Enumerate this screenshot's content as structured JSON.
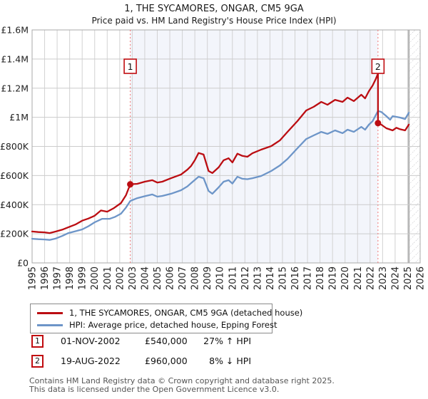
{
  "title": "1, THE SYCAMORES, ONGAR, CM5 9GA",
  "subtitle": "Price paid vs. HM Land Registry's House Price Index (HPI)",
  "colors": {
    "property_line": "#bb0d12",
    "hpi_line": "#6d95c8",
    "shade_between_sales": "#f3f5fb",
    "sale_dashed_line": "#fketch07878",
    "grid": "#cccccc",
    "plot_border": "#aaaaaa",
    "hatch": "#c2c2c6",
    "marker_box_border": "#c00c10",
    "footer_text": "#555555"
  },
  "chart_data": {
    "type": "line",
    "title": "1, THE SYCAMORES, ONGAR, CM5 9GA",
    "subtitle": "Price paid vs. HM Land Registry's House Price Index (HPI)",
    "units": "GBP thousands",
    "x_range": [
      1995,
      2026
    ],
    "ylim_k": [
      0,
      1600
    ],
    "grid": true,
    "legend_position": "bottom",
    "y_ticks": [
      {
        "label": "£0",
        "value": 0
      },
      {
        "label": "£200K",
        "value": 200
      },
      {
        "label": "£400K",
        "value": 400
      },
      {
        "label": "£600K",
        "value": 600
      },
      {
        "label": "£800K",
        "value": 800
      },
      {
        "label": "£1M",
        "value": 1000
      },
      {
        "label": "£1.2M",
        "value": 1200
      },
      {
        "label": "£1.4M",
        "value": 1400
      },
      {
        "label": "£1.6M",
        "value": 1600
      }
    ],
    "x_tick_labels": [
      "1995",
      "1996",
      "1997",
      "1998",
      "1999",
      "2000",
      "2001",
      "2002",
      "2003",
      "2004",
      "2005",
      "2006",
      "2007",
      "2008",
      "2009",
      "2010",
      "2011",
      "2012",
      "2013",
      "2014",
      "2015",
      "2016",
      "2017",
      "2018",
      "2019",
      "2020",
      "2021",
      "2022",
      "2023",
      "2024",
      "2025",
      "2026"
    ],
    "shaded_region_years": [
      2002.84,
      2022.63
    ],
    "hatch_region_years": [
      2025.1,
      2026
    ],
    "sales": [
      {
        "num": "1",
        "year": 2002.84,
        "price_k": 540
      },
      {
        "num": "2",
        "year": 2022.63,
        "price_k": 960
      }
    ],
    "series": [
      {
        "name": "1, THE SYCAMORES, ONGAR, CM5 9GA (detached house)",
        "color": "#bb0d12",
        "points": [
          [
            1995.0,
            216
          ],
          [
            1995.5,
            212
          ],
          [
            1996.0,
            210
          ],
          [
            1996.4,
            205
          ],
          [
            1996.9,
            216
          ],
          [
            1997.4,
            228
          ],
          [
            1997.9,
            245
          ],
          [
            1998.5,
            265
          ],
          [
            1999.0,
            290
          ],
          [
            1999.5,
            305
          ],
          [
            2000.0,
            324
          ],
          [
            2000.5,
            360
          ],
          [
            2001.0,
            352
          ],
          [
            2001.5,
            375
          ],
          [
            2002.1,
            411
          ],
          [
            2002.5,
            465
          ],
          [
            2002.84,
            540
          ],
          [
            2003.4,
            543
          ],
          [
            2004.0,
            558
          ],
          [
            2004.6,
            568
          ],
          [
            2005.0,
            552
          ],
          [
            2005.4,
            558
          ],
          [
            2006.1,
            582
          ],
          [
            2006.9,
            607
          ],
          [
            2007.4,
            640
          ],
          [
            2007.7,
            666
          ],
          [
            2008.0,
            705
          ],
          [
            2008.3,
            755
          ],
          [
            2008.7,
            744
          ],
          [
            2009.1,
            631
          ],
          [
            2009.4,
            617
          ],
          [
            2009.9,
            656
          ],
          [
            2010.3,
            705
          ],
          [
            2010.7,
            719
          ],
          [
            2011.0,
            690
          ],
          [
            2011.4,
            750
          ],
          [
            2011.8,
            735
          ],
          [
            2012.2,
            729
          ],
          [
            2012.6,
            753
          ],
          [
            2013.3,
            778
          ],
          [
            2014.1,
            802
          ],
          [
            2014.8,
            842
          ],
          [
            2015.4,
            900
          ],
          [
            2016.2,
            974
          ],
          [
            2016.9,
            1047
          ],
          [
            2017.5,
            1072
          ],
          [
            2018.1,
            1106
          ],
          [
            2018.6,
            1086
          ],
          [
            2019.2,
            1120
          ],
          [
            2019.8,
            1106
          ],
          [
            2020.2,
            1135
          ],
          [
            2020.7,
            1111
          ],
          [
            2021.3,
            1155
          ],
          [
            2021.6,
            1130
          ],
          [
            2021.9,
            1179
          ],
          [
            2022.2,
            1218
          ],
          [
            2022.45,
            1262
          ],
          [
            2022.63,
            1300
          ],
          [
            2022.63,
            960
          ],
          [
            2022.9,
            949
          ],
          [
            2023.3,
            925
          ],
          [
            2023.8,
            910
          ],
          [
            2024.1,
            928
          ],
          [
            2024.4,
            918
          ],
          [
            2024.8,
            910
          ],
          [
            2025.1,
            950
          ]
        ]
      },
      {
        "name": "HPI: Average price, detached house, Epping Forest",
        "color": "#6d95c8",
        "points": [
          [
            1995.0,
            166
          ],
          [
            1995.5,
            163
          ],
          [
            1996.0,
            161
          ],
          [
            1996.4,
            158
          ],
          [
            1996.9,
            168
          ],
          [
            1997.4,
            185
          ],
          [
            1997.9,
            205
          ],
          [
            1998.5,
            218
          ],
          [
            1999.0,
            230
          ],
          [
            1999.5,
            252
          ],
          [
            2000.0,
            279
          ],
          [
            2000.6,
            303
          ],
          [
            2001.2,
            303
          ],
          [
            2001.6,
            315
          ],
          [
            2002.1,
            338
          ],
          [
            2002.5,
            380
          ],
          [
            2002.84,
            425
          ],
          [
            2003.4,
            445
          ],
          [
            2004.0,
            458
          ],
          [
            2004.6,
            470
          ],
          [
            2005.0,
            455
          ],
          [
            2005.4,
            460
          ],
          [
            2006.1,
            475
          ],
          [
            2006.9,
            499
          ],
          [
            2007.4,
            525
          ],
          [
            2007.7,
            548
          ],
          [
            2008.3,
            592
          ],
          [
            2008.7,
            582
          ],
          [
            2009.1,
            494
          ],
          [
            2009.4,
            475
          ],
          [
            2009.9,
            519
          ],
          [
            2010.3,
            558
          ],
          [
            2010.7,
            568
          ],
          [
            2011.0,
            545
          ],
          [
            2011.4,
            592
          ],
          [
            2011.8,
            578
          ],
          [
            2012.2,
            575
          ],
          [
            2012.6,
            582
          ],
          [
            2013.3,
            597
          ],
          [
            2014.1,
            631
          ],
          [
            2014.8,
            670
          ],
          [
            2015.4,
            714
          ],
          [
            2016.2,
            788
          ],
          [
            2016.9,
            851
          ],
          [
            2017.5,
            876
          ],
          [
            2018.1,
            900
          ],
          [
            2018.6,
            886
          ],
          [
            2019.2,
            910
          ],
          [
            2019.8,
            891
          ],
          [
            2020.2,
            915
          ],
          [
            2020.7,
            900
          ],
          [
            2021.3,
            934
          ],
          [
            2021.6,
            915
          ],
          [
            2021.9,
            949
          ],
          [
            2022.2,
            973
          ],
          [
            2022.63,
            1043
          ],
          [
            2022.9,
            1037
          ],
          [
            2023.3,
            1008
          ],
          [
            2023.6,
            983
          ],
          [
            2023.8,
            1008
          ],
          [
            2024.4,
            998
          ],
          [
            2024.8,
            988
          ],
          [
            2025.1,
            1032
          ]
        ]
      }
    ]
  },
  "legend": {
    "items": [
      {
        "label": "1, THE SYCAMORES, ONGAR, CM5 9GA (detached house)",
        "color": "#bb0d12"
      },
      {
        "label": "HPI: Average price, detached house, Epping Forest",
        "color": "#6d95c8"
      }
    ]
  },
  "annotations": [
    {
      "num": "1",
      "date": "01-NOV-2002",
      "price": "£540,000",
      "hpi_diff": "27% ↑ HPI"
    },
    {
      "num": "2",
      "date": "19-AUG-2022",
      "price": "£960,000",
      "hpi_diff": "8% ↓ HPI"
    }
  ],
  "footer": {
    "line1": "Contains HM Land Registry data © Crown copyright and database right 2025.",
    "line2": "This data is licensed under the Open Government Licence v3.0."
  }
}
